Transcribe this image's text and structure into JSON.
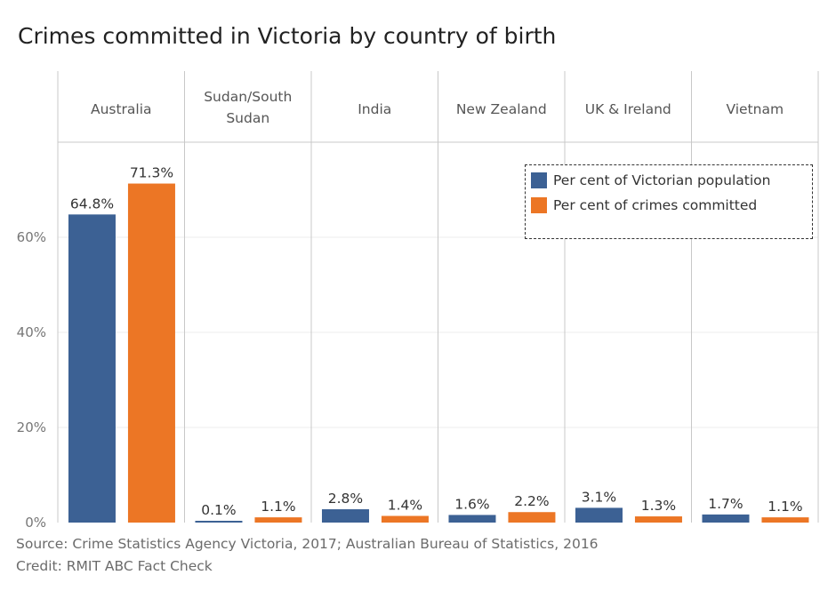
{
  "title": "Crimes committed in Victoria by country of birth",
  "footer": {
    "source": "Source: Crime Statistics Agency Victoria, 2017; Australian Bureau of Statistics, 2016",
    "credit": "Credit: RMIT ABC Fact Check"
  },
  "colors": {
    "population": "#3c6194",
    "crimes": "#ec7625",
    "grid": "#ececec",
    "divider": "#c8c8c8",
    "axis_text": "#777777",
    "label_text": "#333333"
  },
  "chart_data": {
    "type": "bar",
    "categories": [
      "Australia",
      "Sudan/South Sudan",
      "India",
      "New Zealand",
      "UK & Ireland",
      "Vietnam"
    ],
    "category_header_lines": [
      [
        "Australia"
      ],
      [
        "Sudan/South",
        "Sudan"
      ],
      [
        "India"
      ],
      [
        "New Zealand"
      ],
      [
        "UK & Ireland"
      ],
      [
        "Vietnam"
      ]
    ],
    "series": [
      {
        "name": "Per cent of Victorian population",
        "values": [
          64.8,
          0.1,
          2.8,
          1.6,
          3.1,
          1.7
        ],
        "labels": [
          "64.8%",
          "0.1%",
          "2.8%",
          "1.6%",
          "3.1%",
          "1.7%"
        ]
      },
      {
        "name": "Per cent of crimes committed",
        "values": [
          71.3,
          1.1,
          1.4,
          2.2,
          1.3,
          1.1
        ],
        "labels": [
          "71.3%",
          "1.1%",
          "1.4%",
          "2.2%",
          "1.3%",
          "1.1%"
        ]
      }
    ],
    "y_ticks": [
      0,
      20,
      40,
      60
    ],
    "y_tick_labels": [
      "0%",
      "20%",
      "40%",
      "60%"
    ],
    "ylim": [
      0,
      80
    ],
    "grid": true,
    "legend_position": "top-right"
  }
}
